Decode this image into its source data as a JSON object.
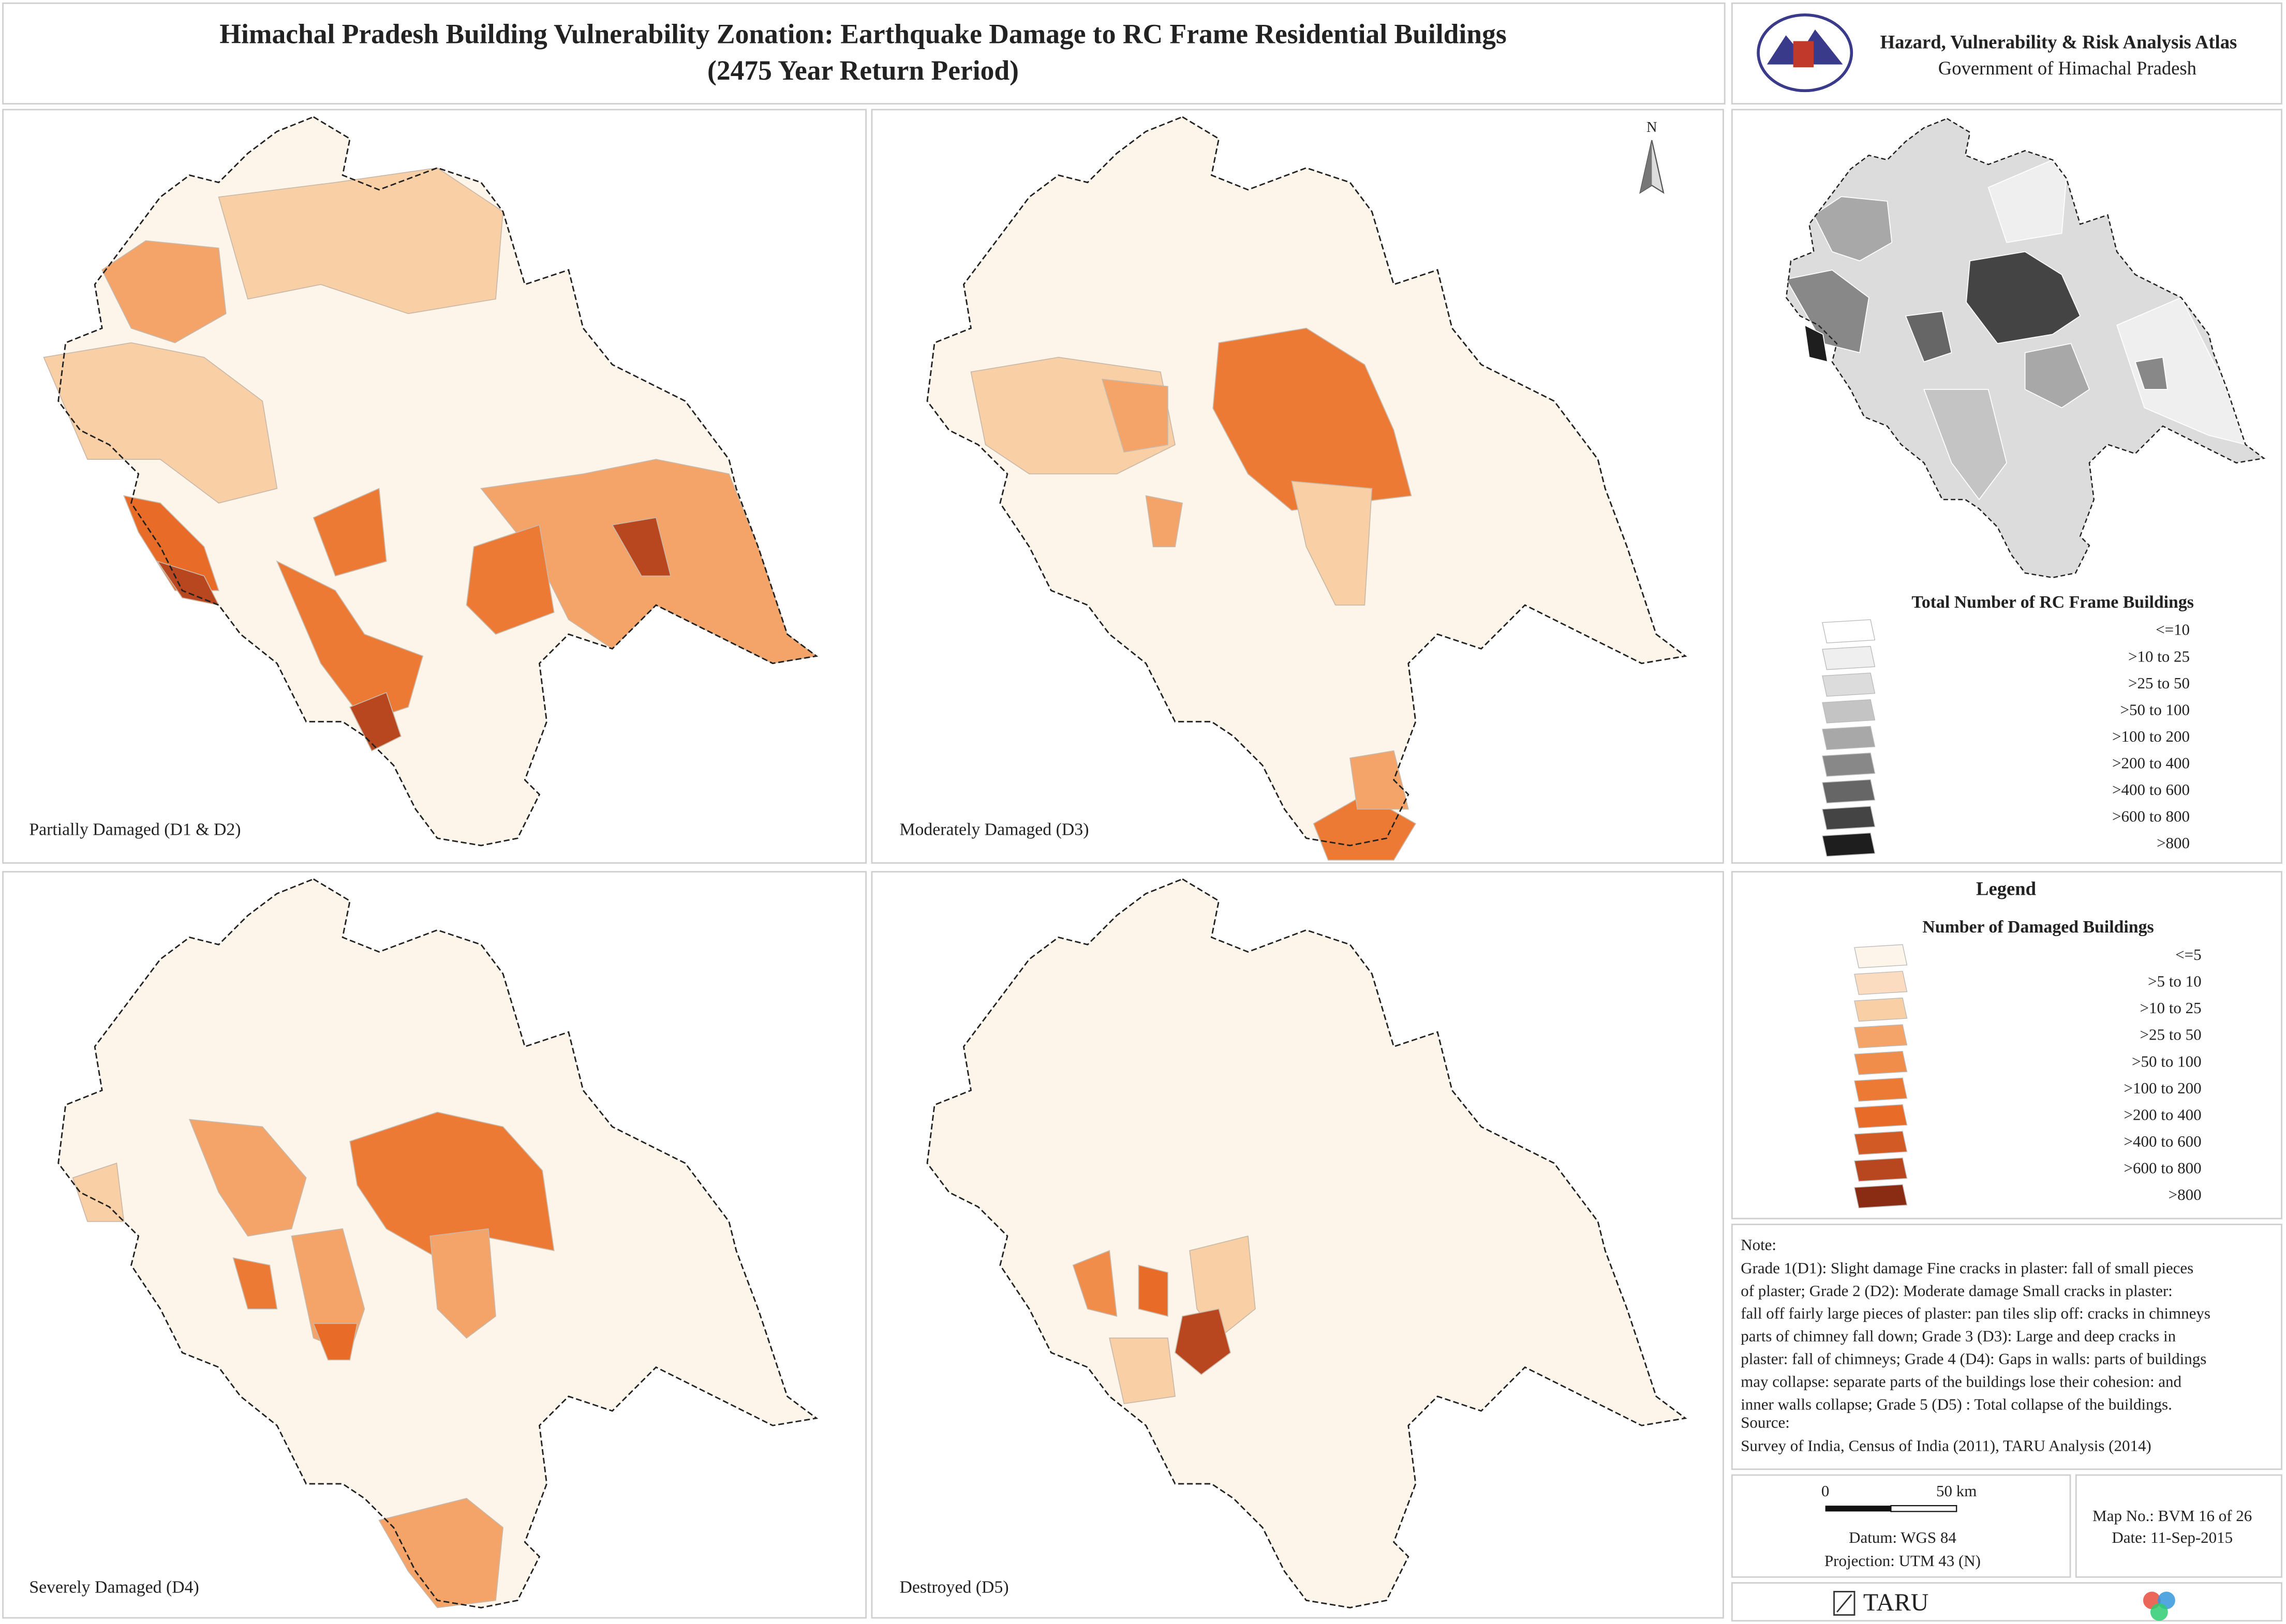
{
  "header": {
    "title": [
      "Himachal Pradesh Building Vulnerability Zonation: Earthquake Damage to RC Frame Residential Buildings",
      "(2475 Year Return Period)"
    ],
    "atlas": "Hazard, Vulnerability & Risk Analysis Atlas",
    "government": "Government of Himachal Pradesh"
  },
  "panels": [
    {
      "label": "Partially Damaged (D1 & D2)"
    },
    {
      "label": "Moderately Damaged (D3)"
    },
    {
      "label": "Severely Damaged (D4)"
    },
    {
      "label": "Destroyed (D5)"
    }
  ],
  "north": "N",
  "overview_legend": {
    "title": "Total Number of RC Frame Buildings",
    "classes": [
      {
        "label": "<=10",
        "color": "#ffffff"
      },
      {
        "label": ">10 to 25",
        "color": "#efefef"
      },
      {
        "label": ">25 to 50",
        "color": "#dcdcdc"
      },
      {
        "label": ">50 to 100",
        "color": "#c4c4c4"
      },
      {
        "label": ">100 to 200",
        "color": "#a8a8a8"
      },
      {
        "label": ">200 to 400",
        "color": "#888888"
      },
      {
        "label": ">400 to 600",
        "color": "#666666"
      },
      {
        "label": ">600 to 800",
        "color": "#444444"
      },
      {
        "label": ">800",
        "color": "#1e1e1e"
      }
    ]
  },
  "legend": {
    "heading": "Legend",
    "title": "Number of Damaged Buildings",
    "classes": [
      {
        "label": "<=5",
        "color": "#fdf4ea"
      },
      {
        "label": ">5 to 10",
        "color": "#fbdcc0"
      },
      {
        "label": ">10 to 25",
        "color": "#f9cfa6"
      },
      {
        "label": ">25 to 50",
        "color": "#f4a468"
      },
      {
        "label": ">50 to 100",
        "color": "#f08d4a"
      },
      {
        "label": ">100 to 200",
        "color": "#ec7a35"
      },
      {
        "label": ">200 to 400",
        "color": "#e86c28"
      },
      {
        "label": ">400 to 600",
        "color": "#d25a24"
      },
      {
        "label": ">600 to 800",
        "color": "#b8461f"
      },
      {
        "label": ">800",
        "color": "#8a2c14"
      }
    ]
  },
  "note": {
    "heading": "Note:",
    "lines": [
      "Grade 1(D1): Slight damage Fine cracks in plaster: fall of small pieces",
      "of plaster; Grade 2 (D2): Moderate damage Small cracks in plaster:",
      "fall off fairly large pieces of plaster: pan tiles slip off: cracks in chimneys",
      "parts of chimney fall down; Grade 3 (D3): Large and deep cracks in",
      "plaster: fall of chimneys; Grade 4 (D4): Gaps in walls: parts of buildings",
      "may collapse: separate parts of the buildings lose their cohesion: and",
      "inner walls collapse; Grade 5 (D5) : Total collapse of the buildings."
    ],
    "source_heading": "Source:",
    "source": "Survey of India, Census of India (2011),  TARU Analysis (2014)"
  },
  "scale": {
    "labels": [
      "0",
      "50 km"
    ]
  },
  "datum": "Datum: WGS 84",
  "projection": "Projection: UTM 43 (N)",
  "map_no": "Map No.: BVM 16 of 26",
  "date": "Date: 11-Sep-2015",
  "brand": "TARU"
}
